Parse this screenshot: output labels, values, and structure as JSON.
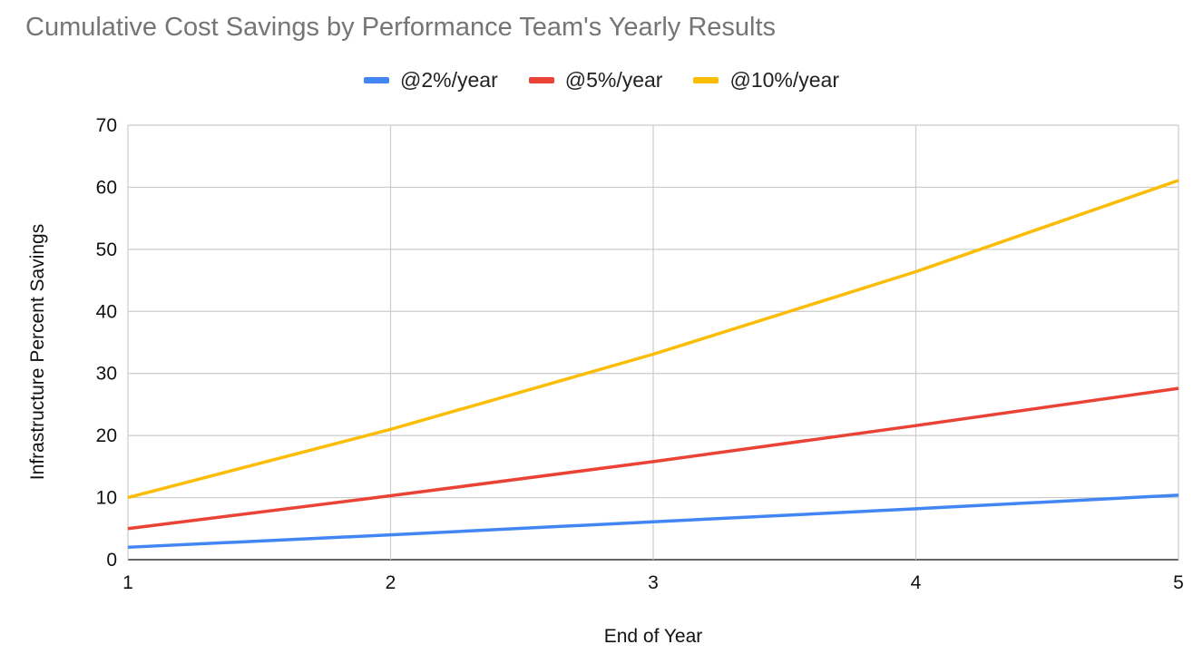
{
  "chart_data": {
    "type": "line",
    "title": "Cumulative Cost Savings by Performance Team's Yearly Results",
    "xlabel": "End of Year",
    "ylabel": "Infrastructure Percent Savings",
    "x": [
      1,
      2,
      3,
      4,
      5
    ],
    "xlim": [
      1,
      5
    ],
    "ylim": [
      0,
      70
    ],
    "yticks": [
      0,
      10,
      20,
      30,
      40,
      50,
      60,
      70
    ],
    "xticks": [
      1,
      2,
      3,
      4,
      5
    ],
    "grid": true,
    "legend_position": "top-center",
    "series": [
      {
        "name": "@2%/year",
        "color": "#4285f4",
        "values": [
          2.0,
          4.0,
          6.1,
          8.2,
          10.4
        ]
      },
      {
        "name": "@5%/year",
        "color": "#ea4335",
        "values": [
          5.0,
          10.3,
          15.8,
          21.6,
          27.6
        ]
      },
      {
        "name": "@10%/year",
        "color": "#fbbc04",
        "values": [
          10.0,
          21.0,
          33.1,
          46.4,
          61.1
        ]
      }
    ]
  }
}
